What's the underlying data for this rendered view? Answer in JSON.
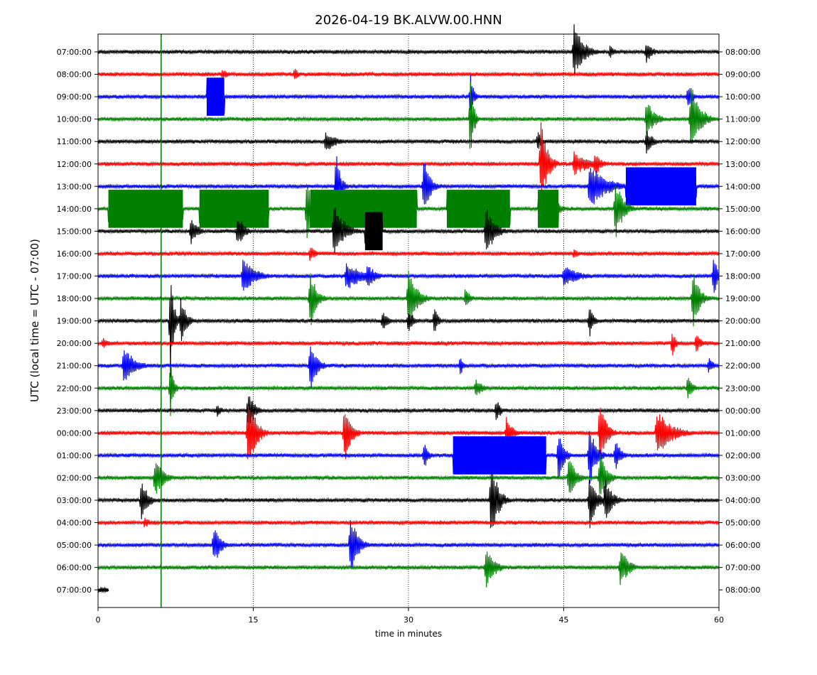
{
  "chart_data": {
    "type": "line",
    "title": "2026-04-19 BK.ALVW.00.HNN",
    "xlabel": "time in minutes",
    "ylabel": "UTC (local time = UTC - 07:00)",
    "xlim": [
      0,
      60
    ],
    "x_ticks": [
      0,
      15,
      30,
      45,
      60
    ],
    "x_tick_labels": [
      "0",
      "15",
      "30",
      "45",
      "60"
    ],
    "grid": "vertical dotted at 15, 30, 45",
    "trace_colors": [
      "#000000",
      "#ff0000",
      "#0000ff",
      "#008000"
    ],
    "rows_left": [
      "07:00:00",
      "08:00:00",
      "09:00:00",
      "10:00:00",
      "11:00:00",
      "12:00:00",
      "13:00:00",
      "14:00:00",
      "15:00:00",
      "16:00:00",
      "17:00:00",
      "18:00:00",
      "19:00:00",
      "20:00:00",
      "21:00:00",
      "22:00:00",
      "23:00:00",
      "00:00:00",
      "01:00:00",
      "02:00:00",
      "03:00:00",
      "04:00:00",
      "05:00:00",
      "06:00:00",
      "07:00:00"
    ],
    "rows_right": [
      "08:00:00",
      "09:00:00",
      "10:00:00",
      "11:00:00",
      "12:00:00",
      "13:00:00",
      "14:00:00",
      "15:00:00",
      "16:00:00",
      "17:00:00",
      "18:00:00",
      "19:00:00",
      "20:00:00",
      "21:00:00",
      "22:00:00",
      "23:00:00",
      "00:00:00",
      "01:00:00",
      "02:00:00",
      "03:00:00",
      "04:00:00",
      "05:00:00",
      "06:00:00",
      "07:00:00",
      "08:00:00"
    ],
    "last_row_end_minute": 1,
    "events": [
      {
        "row": 0,
        "t": 46,
        "amp": 1.3,
        "w": 0.9
      },
      {
        "row": 0,
        "t": 49.5,
        "amp": 0.4,
        "w": 0.4
      },
      {
        "row": 0,
        "t": 53,
        "amp": 0.5,
        "w": 0.6
      },
      {
        "row": 1,
        "t": 12,
        "amp": 0.3,
        "w": 0.5
      },
      {
        "row": 1,
        "t": 19,
        "amp": 0.3,
        "w": 0.4
      },
      {
        "row": 2,
        "t": 36,
        "amp": 1.0,
        "w": 0.3
      },
      {
        "row": 2,
        "t": 57,
        "amp": 0.6,
        "w": 0.5
      },
      {
        "row": 3,
        "t": 36,
        "amp": 2.0,
        "w": 0.3
      },
      {
        "row": 3,
        "t": 53,
        "amp": 0.9,
        "w": 0.8
      },
      {
        "row": 3,
        "t": 57.3,
        "amp": 1.8,
        "w": 0.8
      },
      {
        "row": 4,
        "t": 22,
        "amp": 0.5,
        "w": 1.0
      },
      {
        "row": 4,
        "t": 53,
        "amp": 0.6,
        "w": 0.6
      },
      {
        "row": 4,
        "t": 42.5,
        "amp": 0.5,
        "w": 0.4
      },
      {
        "row": 5,
        "t": 42.8,
        "amp": 2.0,
        "w": 0.6
      },
      {
        "row": 5,
        "t": 46,
        "amp": 0.6,
        "w": 1.5
      },
      {
        "row": 5,
        "t": 48,
        "amp": 0.6,
        "w": 0.6
      },
      {
        "row": 6,
        "t": 23,
        "amp": 1.8,
        "w": 0.4
      },
      {
        "row": 6,
        "t": 31.5,
        "amp": 1.3,
        "w": 0.6
      },
      {
        "row": 6,
        "t": 47.5,
        "amp": 1.1,
        "w": 1.5
      },
      {
        "row": 7,
        "t": 20.2,
        "amp": 1.7,
        "w": 0.6
      },
      {
        "row": 7,
        "t": 25.5,
        "amp": 1.8,
        "w": 0.6
      },
      {
        "row": 7,
        "t": 43.5,
        "amp": 1.4,
        "w": 0.6
      },
      {
        "row": 7,
        "t": 50,
        "amp": 1.5,
        "w": 0.7
      },
      {
        "row": 8,
        "t": 22.8,
        "amp": 1.4,
        "w": 0.9
      },
      {
        "row": 8,
        "t": 37.5,
        "amp": 1.2,
        "w": 0.8
      },
      {
        "row": 8,
        "t": 9,
        "amp": 0.7,
        "w": 0.6
      },
      {
        "row": 8,
        "t": 13.5,
        "amp": 0.8,
        "w": 0.6
      },
      {
        "row": 9,
        "t": 20.5,
        "amp": 0.4,
        "w": 0.5
      },
      {
        "row": 9,
        "t": 46,
        "amp": 0.3,
        "w": 0.5
      },
      {
        "row": 10,
        "t": 14,
        "amp": 0.8,
        "w": 1.2
      },
      {
        "row": 10,
        "t": 24,
        "amp": 0.7,
        "w": 1.5
      },
      {
        "row": 10,
        "t": 26,
        "amp": 0.6,
        "w": 0.8
      },
      {
        "row": 10,
        "t": 45,
        "amp": 0.5,
        "w": 1.5
      },
      {
        "row": 10,
        "t": 59.5,
        "amp": 1.0,
        "w": 0.4
      },
      {
        "row": 11,
        "t": 20.5,
        "amp": 1.4,
        "w": 0.6
      },
      {
        "row": 11,
        "t": 30,
        "amp": 1.4,
        "w": 0.8
      },
      {
        "row": 11,
        "t": 35.5,
        "amp": 0.5,
        "w": 0.5
      },
      {
        "row": 11,
        "t": 57.5,
        "amp": 1.5,
        "w": 0.6
      },
      {
        "row": 12,
        "t": 7,
        "amp": 2.6,
        "w": 0.3
      },
      {
        "row": 12,
        "t": 8,
        "amp": 1.2,
        "w": 0.5
      },
      {
        "row": 12,
        "t": 27.5,
        "amp": 0.5,
        "w": 0.5
      },
      {
        "row": 12,
        "t": 30,
        "amp": 0.6,
        "w": 0.5
      },
      {
        "row": 12,
        "t": 32.5,
        "amp": 0.9,
        "w": 0.3
      },
      {
        "row": 12,
        "t": 47.5,
        "amp": 0.8,
        "w": 0.4
      },
      {
        "row": 13,
        "t": 0.5,
        "amp": 0.3,
        "w": 0.5
      },
      {
        "row": 13,
        "t": 55.5,
        "amp": 0.7,
        "w": 0.3
      },
      {
        "row": 13,
        "t": 57.8,
        "amp": 0.6,
        "w": 0.4
      },
      {
        "row": 14,
        "t": 2.5,
        "amp": 0.9,
        "w": 1.0
      },
      {
        "row": 14,
        "t": 20.5,
        "amp": 1.3,
        "w": 0.6
      },
      {
        "row": 14,
        "t": 35,
        "amp": 0.5,
        "w": 0.3
      },
      {
        "row": 14,
        "t": 59,
        "amp": 0.4,
        "w": 0.5
      },
      {
        "row": 15,
        "t": 7,
        "amp": 1.3,
        "w": 0.3
      },
      {
        "row": 15,
        "t": 36.5,
        "amp": 0.5,
        "w": 0.6
      },
      {
        "row": 15,
        "t": 57,
        "amp": 0.6,
        "w": 0.5
      },
      {
        "row": 16,
        "t": 14.5,
        "amp": 0.9,
        "w": 0.6
      },
      {
        "row": 16,
        "t": 11.5,
        "amp": 0.3,
        "w": 0.5
      },
      {
        "row": 16,
        "t": 38.5,
        "amp": 0.6,
        "w": 0.4
      },
      {
        "row": 17,
        "t": 14.5,
        "amp": 1.9,
        "w": 0.7
      },
      {
        "row": 17,
        "t": 23.8,
        "amp": 1.5,
        "w": 0.6
      },
      {
        "row": 17,
        "t": 39.5,
        "amp": 0.9,
        "w": 0.5
      },
      {
        "row": 17,
        "t": 48.5,
        "amp": 1.6,
        "w": 0.6
      },
      {
        "row": 17,
        "t": 54,
        "amp": 1.1,
        "w": 1.4
      },
      {
        "row": 18,
        "t": 44.5,
        "amp": 1.3,
        "w": 0.5
      },
      {
        "row": 18,
        "t": 47.5,
        "amp": 1.5,
        "w": 0.6
      },
      {
        "row": 18,
        "t": 50,
        "amp": 0.7,
        "w": 0.6
      },
      {
        "row": 18,
        "t": 31.5,
        "amp": 0.7,
        "w": 0.4
      },
      {
        "row": 19,
        "t": 5.5,
        "amp": 0.9,
        "w": 0.8
      },
      {
        "row": 19,
        "t": 45.5,
        "amp": 1.2,
        "w": 0.6
      },
      {
        "row": 19,
        "t": 48.5,
        "amp": 1.3,
        "w": 0.6
      },
      {
        "row": 20,
        "t": 4.2,
        "amp": 1.0,
        "w": 0.6
      },
      {
        "row": 20,
        "t": 38,
        "amp": 2.1,
        "w": 0.6
      },
      {
        "row": 20,
        "t": 47.5,
        "amp": 1.4,
        "w": 0.6
      },
      {
        "row": 20,
        "t": 49,
        "amp": 1.0,
        "w": 0.7
      },
      {
        "row": 21,
        "t": 4.5,
        "amp": 0.3,
        "w": 0.5
      },
      {
        "row": 22,
        "t": 11.2,
        "amp": 1.0,
        "w": 0.6
      },
      {
        "row": 22,
        "t": 24.4,
        "amp": 1.4,
        "w": 0.7
      },
      {
        "row": 23,
        "t": 37.5,
        "amp": 1.0,
        "w": 0.8
      },
      {
        "row": 23,
        "t": 50.5,
        "amp": 1.0,
        "w": 0.7
      }
    ],
    "saturated_blocks": [
      {
        "row": 2,
        "start": 10.5,
        "end": 12.2
      },
      {
        "row": 6,
        "start": 51,
        "end": 57.8
      },
      {
        "row": 7,
        "start": 1,
        "end": 8.2
      },
      {
        "row": 7,
        "start": 9.8,
        "end": 16.5
      },
      {
        "row": 7,
        "start": 20.5,
        "end": 30.8
      },
      {
        "row": 7,
        "start": 33.7,
        "end": 39.8
      },
      {
        "row": 7,
        "start": 42.5,
        "end": 44.5
      },
      {
        "row": 8,
        "start": 25.8,
        "end": 27.5
      },
      {
        "row": 18,
        "start": 34.3,
        "end": 43.3
      }
    ],
    "vertical_spikes": [
      {
        "row": 0,
        "t": 6.1,
        "color_row": 3
      },
      {
        "row": 3,
        "t": 6.1,
        "color_row": 3
      }
    ]
  }
}
